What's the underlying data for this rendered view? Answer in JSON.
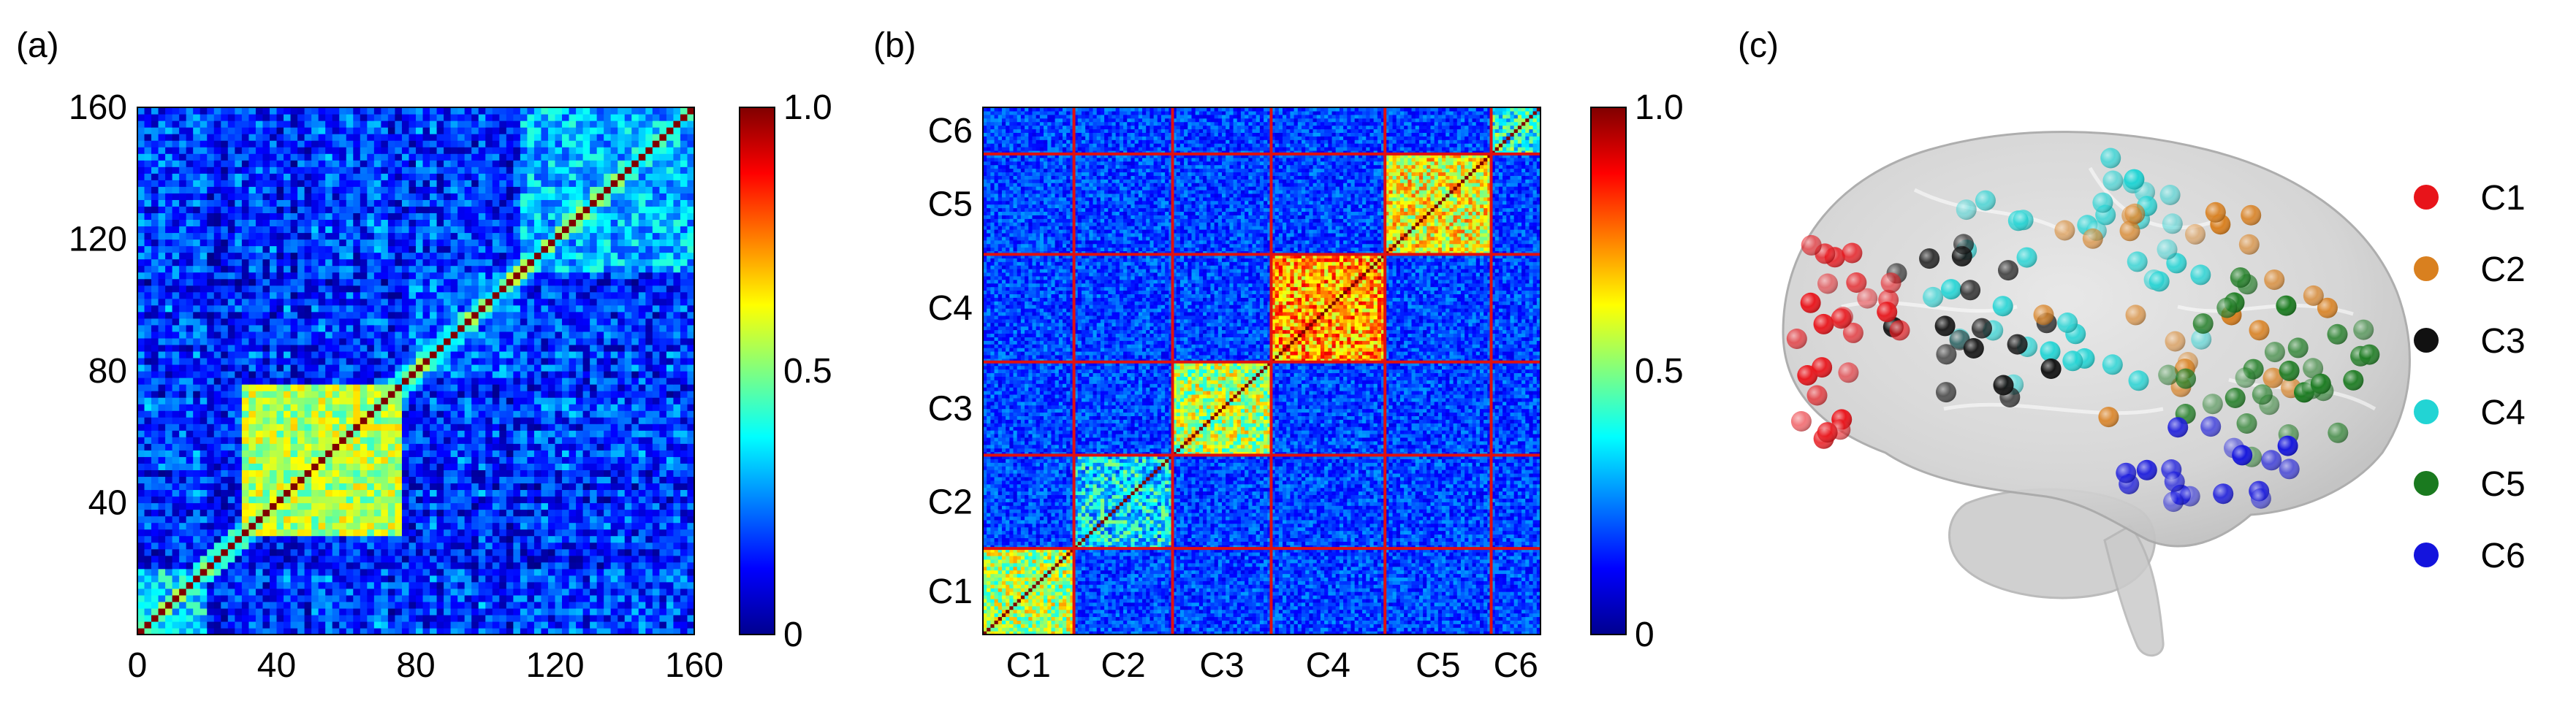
{
  "panels": {
    "a": {
      "label": "(a)"
    },
    "b": {
      "label": "(b)"
    },
    "c": {
      "label": "(c)"
    }
  },
  "chart_data": [
    {
      "panel": "(a)",
      "type": "heatmap",
      "description_values": "160x160 symmetric correlation-like matrix, diagonal = 1.0",
      "x_ticks": [
        "0",
        "40",
        "80",
        "120",
        "160"
      ],
      "y_ticks": [
        "40",
        "80",
        "120",
        "160"
      ],
      "xlim": [
        0,
        160
      ],
      "ylim": [
        0,
        160
      ],
      "colormap": "jet",
      "colorbar": {
        "min": 0,
        "max": 1.0,
        "ticks": [
          "0",
          "0.5",
          "1.0"
        ]
      },
      "blocks": [
        {
          "range": [
            0,
            20
          ],
          "level": 0.35
        },
        {
          "range": [
            30,
            75
          ],
          "level": 0.55
        },
        {
          "range": [
            78,
            110
          ],
          "level": 0.22
        },
        {
          "range": [
            110,
            160
          ],
          "level": 0.3
        }
      ]
    },
    {
      "panel": "(b)",
      "type": "heatmap",
      "description_values": "same matrix reordered into 6 modules C1..C6 with red boundary lines",
      "modules": [
        {
          "name": "C1",
          "start": 0,
          "end": 24,
          "level": 0.55
        },
        {
          "name": "C2",
          "start": 24,
          "end": 50,
          "level": 0.35
        },
        {
          "name": "C3",
          "start": 50,
          "end": 76,
          "level": 0.55
        },
        {
          "name": "C4",
          "start": 76,
          "end": 106,
          "level": 0.72
        },
        {
          "name": "C5",
          "start": 106,
          "end": 134,
          "level": 0.62
        },
        {
          "name": "C6",
          "start": 134,
          "end": 147,
          "level": 0.4
        }
      ],
      "n": 147,
      "x_tick_labels": [
        "C1",
        "C2",
        "C3",
        "C4",
        "C5",
        "C6"
      ],
      "y_tick_labels": [
        "C1",
        "C2",
        "C3",
        "C4",
        "C5",
        "C6"
      ],
      "colormap": "jet",
      "colorbar": {
        "min": 0,
        "max": 1.0,
        "ticks": [
          "0",
          "0.5",
          "1.0"
        ]
      }
    },
    {
      "panel": "(c)",
      "type": "scatter",
      "description_values": "brain render (lateral view) with nodes colored by module",
      "legend": [
        {
          "name": "C1",
          "color": "#e8141a"
        },
        {
          "name": "C2",
          "color": "#d9801f"
        },
        {
          "name": "C3",
          "color": "#111111"
        },
        {
          "name": "C4",
          "color": "#22d4d4"
        },
        {
          "name": "C5",
          "color": "#1a7a1f"
        },
        {
          "name": "C6",
          "color": "#1414dd"
        }
      ],
      "legend_position": "right"
    }
  ]
}
